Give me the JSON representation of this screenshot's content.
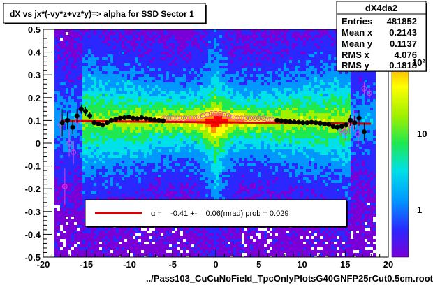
{
  "chart_data": {
    "type": "heatmap",
    "title": "dX vs    jx*(-vy*z+vz*y)=> alpha for SSD Sector 1",
    "xlabel": "../Pass103_CuCuNoField_TpcOnlyPlotsG40GNFP25rCut0.5cm.root",
    "ylabel": "",
    "xlim": [
      -20,
      20
    ],
    "ylim": [
      -0.5,
      0.5
    ],
    "x_ticks": [
      "-20",
      "-15",
      "-10",
      "-5",
      "0",
      "5",
      "10",
      "15",
      "20"
    ],
    "y_ticks": [
      "-0.5",
      "-0.4",
      "-0.3",
      "-0.2",
      "-0.1",
      "0",
      "0.1",
      "0.2",
      "0.3",
      "0.4",
      "0.5"
    ],
    "z_ticks": [
      "1",
      "10",
      "10²"
    ],
    "z_scale": "log",
    "grid": false,
    "stats": {
      "name": "dX4da2",
      "rows": [
        {
          "label": "Entries",
          "value": "481852"
        },
        {
          "label": "Mean x",
          "value": "0.2143"
        },
        {
          "label": "Mean y",
          "value": "0.1137"
        },
        {
          "label": "RMS x",
          "value": "4.076"
        },
        {
          "label": "RMS y",
          "value": "0.1818"
        }
      ]
    },
    "fit": {
      "label": "α =    -0.41 +-    0.06(mrad) prob = 0.029",
      "y_at_minus18": 0.098,
      "y_at_plus18": 0.086,
      "color": "#dd0000"
    },
    "profile_black": [
      {
        "x": -17.8,
        "y": 0.09,
        "e": 0.06
      },
      {
        "x": -17.2,
        "y": 0.1,
        "e": 0.04
      },
      {
        "x": -16.6,
        "y": 0.07,
        "e": 0.03
      },
      {
        "x": -16.1,
        "y": 0.12,
        "e": 0.03
      },
      {
        "x": -15.6,
        "y": 0.15,
        "e": 0.02
      },
      {
        "x": -15.1,
        "y": 0.14,
        "e": 0.02
      },
      {
        "x": -14.6,
        "y": 0.12,
        "e": 0.015
      },
      {
        "x": -14.1,
        "y": 0.09,
        "e": 0.01
      },
      {
        "x": -13.6,
        "y": 0.085,
        "e": 0.01
      },
      {
        "x": -13.1,
        "y": 0.08,
        "e": 0.01
      },
      {
        "x": -12.6,
        "y": 0.09,
        "e": 0.01
      },
      {
        "x": -12.1,
        "y": 0.1,
        "e": 0.008
      },
      {
        "x": -11.6,
        "y": 0.105,
        "e": 0.008
      },
      {
        "x": -11.1,
        "y": 0.11,
        "e": 0.008
      },
      {
        "x": -10.6,
        "y": 0.112,
        "e": 0.007
      },
      {
        "x": -10.1,
        "y": 0.115,
        "e": 0.007
      },
      {
        "x": -9.6,
        "y": 0.11,
        "e": 0.006
      },
      {
        "x": -9.1,
        "y": 0.108,
        "e": 0.006
      },
      {
        "x": -8.6,
        "y": 0.112,
        "e": 0.006
      },
      {
        "x": -8.1,
        "y": 0.108,
        "e": 0.005
      },
      {
        "x": -7.6,
        "y": 0.105,
        "e": 0.005
      },
      {
        "x": -7.1,
        "y": 0.102,
        "e": 0.005
      },
      {
        "x": -6.6,
        "y": 0.1,
        "e": 0.005
      },
      {
        "x": -6.1,
        "y": 0.098,
        "e": 0.005
      },
      {
        "x": 7.1,
        "y": 0.1,
        "e": 0.005
      },
      {
        "x": 7.6,
        "y": 0.098,
        "e": 0.005
      },
      {
        "x": 8.1,
        "y": 0.096,
        "e": 0.005
      },
      {
        "x": 8.6,
        "y": 0.094,
        "e": 0.005
      },
      {
        "x": 9.1,
        "y": 0.093,
        "e": 0.006
      },
      {
        "x": 9.6,
        "y": 0.092,
        "e": 0.006
      },
      {
        "x": 10.1,
        "y": 0.09,
        "e": 0.006
      },
      {
        "x": 10.6,
        "y": 0.09,
        "e": 0.007
      },
      {
        "x": 11.1,
        "y": 0.092,
        "e": 0.007
      },
      {
        "x": 11.6,
        "y": 0.09,
        "e": 0.008
      },
      {
        "x": 12.1,
        "y": 0.088,
        "e": 0.008
      },
      {
        "x": 12.6,
        "y": 0.085,
        "e": 0.009
      },
      {
        "x": 13.1,
        "y": 0.082,
        "e": 0.01
      },
      {
        "x": 13.6,
        "y": 0.075,
        "e": 0.01
      },
      {
        "x": 14.1,
        "y": 0.07,
        "e": 0.012
      },
      {
        "x": 14.6,
        "y": 0.075,
        "e": 0.015
      },
      {
        "x": 15.1,
        "y": 0.08,
        "e": 0.02
      },
      {
        "x": 15.6,
        "y": 0.1,
        "e": 0.025
      },
      {
        "x": 16.1,
        "y": 0.09,
        "e": 0.03
      },
      {
        "x": 16.6,
        "y": 0.11,
        "e": 0.035
      },
      {
        "x": 17.2,
        "y": 0.05,
        "e": 0.04
      }
    ],
    "profile_magenta": [
      {
        "x": -18.0,
        "y": 0.08,
        "e": 0.05
      },
      {
        "x": -17.5,
        "y": -0.19,
        "e": 0.08
      },
      {
        "x": -17.0,
        "y": 0.0,
        "e": 0.06
      },
      {
        "x": -16.5,
        "y": -0.04,
        "e": 0.05
      },
      {
        "x": -16.0,
        "y": 0.1,
        "e": 0.04
      },
      {
        "x": -6.0,
        "y": 0.11,
        "e": 0.005
      },
      {
        "x": -5.5,
        "y": 0.11,
        "e": 0.005
      },
      {
        "x": -5.0,
        "y": 0.11,
        "e": 0.005
      },
      {
        "x": -4.5,
        "y": 0.11,
        "e": 0.005
      },
      {
        "x": -4.0,
        "y": 0.11,
        "e": 0.004
      },
      {
        "x": -3.5,
        "y": 0.11,
        "e": 0.004
      },
      {
        "x": -3.0,
        "y": 0.11,
        "e": 0.004
      },
      {
        "x": -2.5,
        "y": 0.11,
        "e": 0.004
      },
      {
        "x": -2.0,
        "y": 0.115,
        "e": 0.004
      },
      {
        "x": -1.5,
        "y": 0.12,
        "e": 0.004
      },
      {
        "x": -1.0,
        "y": 0.125,
        "e": 0.004
      },
      {
        "x": -0.5,
        "y": 0.13,
        "e": 0.004
      },
      {
        "x": 0.0,
        "y": 0.13,
        "e": 0.004
      },
      {
        "x": 0.5,
        "y": 0.13,
        "e": 0.004
      },
      {
        "x": 1.0,
        "y": 0.125,
        "e": 0.004
      },
      {
        "x": 1.5,
        "y": 0.12,
        "e": 0.004
      },
      {
        "x": 2.0,
        "y": 0.115,
        "e": 0.004
      },
      {
        "x": 2.5,
        "y": 0.11,
        "e": 0.004
      },
      {
        "x": 3.0,
        "y": 0.11,
        "e": 0.004
      },
      {
        "x": 3.5,
        "y": 0.11,
        "e": 0.004
      },
      {
        "x": 4.0,
        "y": 0.11,
        "e": 0.005
      },
      {
        "x": 4.5,
        "y": 0.11,
        "e": 0.005
      },
      {
        "x": 5.0,
        "y": 0.11,
        "e": 0.005
      },
      {
        "x": 5.5,
        "y": 0.11,
        "e": 0.005
      },
      {
        "x": 6.0,
        "y": 0.105,
        "e": 0.005
      },
      {
        "x": 6.5,
        "y": 0.105,
        "e": 0.005
      },
      {
        "x": 14.5,
        "y": 0.06,
        "e": 0.03
      },
      {
        "x": 15.0,
        "y": 0.05,
        "e": 0.04
      },
      {
        "x": 15.5,
        "y": 0.08,
        "e": 0.04
      },
      {
        "x": 16.0,
        "y": 0.1,
        "e": 0.05
      },
      {
        "x": 16.5,
        "y": 0.04,
        "e": 0.06
      },
      {
        "x": 17.2,
        "y": 0.24,
        "e": 0.03
      },
      {
        "x": 17.8,
        "y": 0.22,
        "e": 0.02
      }
    ]
  }
}
